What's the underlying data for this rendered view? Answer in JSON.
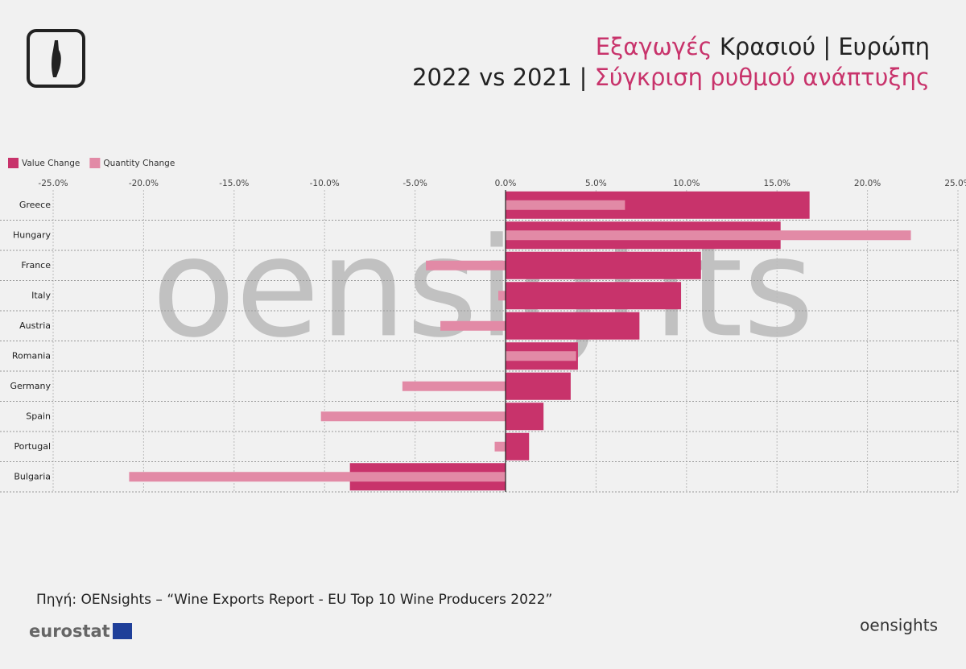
{
  "chart_data": {
    "type": "bar",
    "orientation": "horizontal",
    "title": [
      "Εξαγωγές",
      "Κρασιού | Ευρώπη"
    ],
    "subtitle": [
      "2022 vs 2021 |",
      "Σύγκριση ρυθμού ανάπτυξης"
    ],
    "categories": [
      "Greece",
      "Hungary",
      "France",
      "Italy",
      "Austria",
      "Romania",
      "Germany",
      "Spain",
      "Portugal",
      "Bulgaria"
    ],
    "series": [
      {
        "name": "Value Change",
        "color": "#c8336b",
        "values": [
          16.8,
          15.2,
          10.8,
          9.7,
          7.4,
          4.0,
          3.6,
          2.1,
          1.3,
          -8.6
        ]
      },
      {
        "name": "Quantity Change",
        "color": "#e28aa6",
        "values": [
          6.6,
          22.4,
          -4.4,
          -0.4,
          -3.6,
          3.9,
          -5.7,
          -10.2,
          -0.6,
          -20.8
        ]
      }
    ],
    "xlim": [
      -25,
      25
    ],
    "xticks": [
      {
        "value": -25,
        "label": "-25.0%"
      },
      {
        "value": -20,
        "label": "-20.0%"
      },
      {
        "value": -15,
        "label": "-15.0%"
      },
      {
        "value": -10,
        "label": "-10.0%"
      },
      {
        "value": -5,
        "label": "-5.0%"
      },
      {
        "value": 0,
        "label": "0.0%"
      },
      {
        "value": 5,
        "label": "5.0%"
      },
      {
        "value": 10,
        "label": "10.0%"
      },
      {
        "value": 15,
        "label": "15.0%"
      },
      {
        "value": 20,
        "label": "20.0%"
      },
      {
        "value": 25,
        "label": "25.0%"
      }
    ],
    "grid": true,
    "legend": "top-left",
    "watermark": "oensights",
    "source": "Πηγή: OENsights – “Wine Exports Report - EU Top 10 Wine Producers 2022”",
    "source_logo": "eurostat",
    "brand": "oensights"
  }
}
